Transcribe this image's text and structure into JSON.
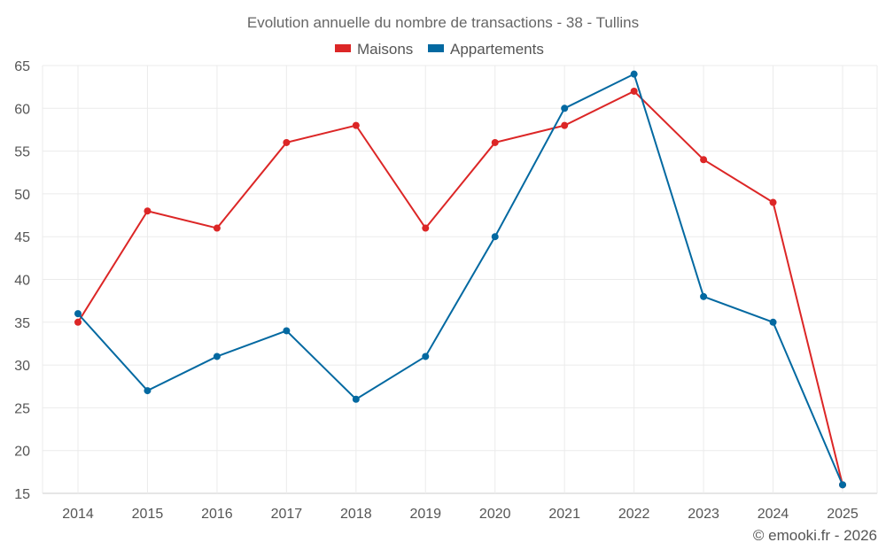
{
  "chart_data": {
    "type": "line",
    "title": "Evolution annuelle du nombre de transactions - 38 - Tullins",
    "xlabel": "",
    "ylabel": "",
    "categories": [
      "2014",
      "2015",
      "2016",
      "2017",
      "2018",
      "2019",
      "2020",
      "2021",
      "2022",
      "2023",
      "2024",
      "2025"
    ],
    "ylim": [
      15,
      65
    ],
    "yticks": [
      15,
      20,
      25,
      30,
      35,
      40,
      45,
      50,
      55,
      60,
      65
    ],
    "grid": true,
    "legend_position": "top-center",
    "series": [
      {
        "name": "Maisons",
        "color": "#dc2626",
        "values": [
          35,
          48,
          46,
          56,
          58,
          46,
          56,
          58,
          62,
          54,
          49,
          16
        ]
      },
      {
        "name": "Appartements",
        "color": "#0369a1",
        "values": [
          36,
          27,
          31,
          34,
          26,
          31,
          45,
          60,
          64,
          38,
          35,
          16
        ]
      }
    ]
  },
  "credit": "© emooki.fr - 2026"
}
